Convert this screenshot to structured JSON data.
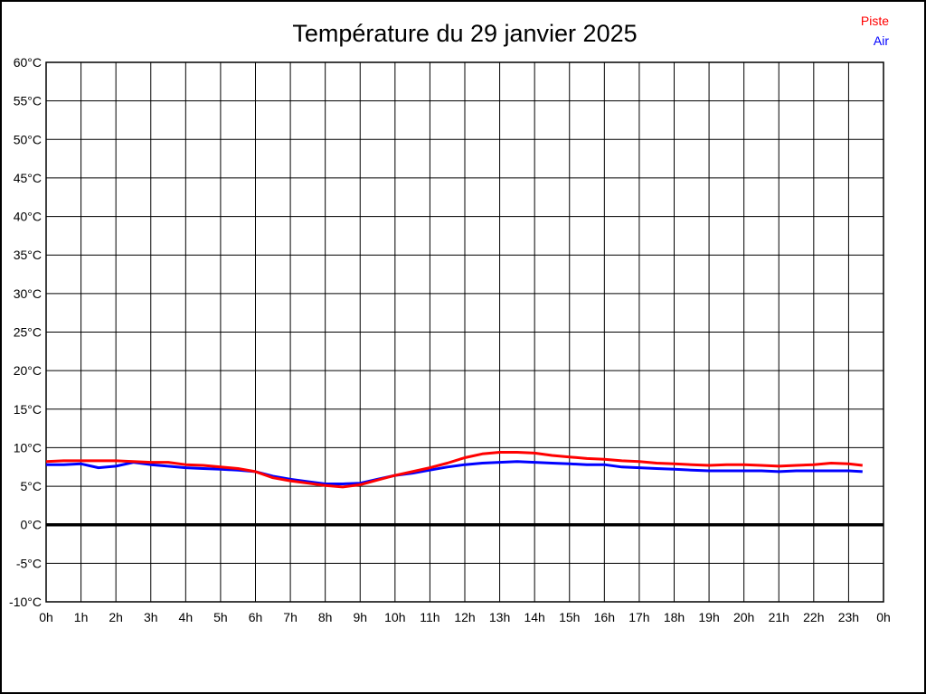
{
  "page": {
    "background": "#ffffff",
    "border_color": "#000000"
  },
  "header": {
    "title": "Température du 29 janvier 2025"
  },
  "legend": {
    "position": "top-right",
    "items": [
      {
        "label": "Piste",
        "color": "#ff0000"
      },
      {
        "label": "Air",
        "color": "#0000ff"
      }
    ]
  },
  "chart_data": {
    "type": "line",
    "title": "Température du 29 janvier 2025",
    "xlabel": "",
    "ylabel": "",
    "x_unit": "hours",
    "xlim": [
      0,
      24
    ],
    "ylim": [
      -10,
      60
    ],
    "x_tick_step_hours": 1,
    "y_tick_step_degrees": 5,
    "x_tick_labels": [
      "0h",
      "1h",
      "2h",
      "3h",
      "4h",
      "5h",
      "6h",
      "7h",
      "8h",
      "9h",
      "10h",
      "11h",
      "12h",
      "13h",
      "14h",
      "15h",
      "16h",
      "17h",
      "18h",
      "19h",
      "20h",
      "21h",
      "22h",
      "23h",
      "0h"
    ],
    "y_tick_labels": [
      "60°C",
      "55°C",
      "50°C",
      "45°C",
      "40°C",
      "35°C",
      "30°C",
      "25°C",
      "20°C",
      "15°C",
      "10°C",
      "5°C",
      "0°C",
      "-5°C",
      "-10°C"
    ],
    "grid": true,
    "grid_color": "#000000",
    "frame_color": "#000000",
    "zero_line": {
      "value": 0,
      "color": "#000000",
      "width": 3.5
    },
    "line_width": 3,
    "x": [
      0,
      0.5,
      1,
      1.5,
      2,
      2.5,
      3,
      3.5,
      4,
      4.5,
      5,
      5.5,
      6,
      6.5,
      7,
      7.5,
      8,
      8.5,
      9,
      9.5,
      10,
      10.5,
      11,
      11.5,
      12,
      12.5,
      13,
      13.5,
      14,
      14.5,
      15,
      15.5,
      16,
      16.5,
      17,
      17.5,
      18,
      18.5,
      19,
      19.5,
      20,
      20.5,
      21,
      21.5,
      22,
      22.5,
      23,
      23.4
    ],
    "series": [
      {
        "name": "Piste",
        "color": "#ff0000",
        "values": [
          8.2,
          8.3,
          8.3,
          8.3,
          8.3,
          8.2,
          8.1,
          8.1,
          7.8,
          7.7,
          7.5,
          7.3,
          6.9,
          6.1,
          5.7,
          5.4,
          5.1,
          4.9,
          5.2,
          5.8,
          6.4,
          6.9,
          7.4,
          8.0,
          8.7,
          9.2,
          9.4,
          9.4,
          9.3,
          9.0,
          8.8,
          8.6,
          8.5,
          8.3,
          8.2,
          8.0,
          7.9,
          7.8,
          7.7,
          7.8,
          7.8,
          7.7,
          7.6,
          7.7,
          7.8,
          8.0,
          7.9,
          7.7
        ]
      },
      {
        "name": "Air",
        "color": "#0000ff",
        "values": [
          7.8,
          7.8,
          7.9,
          7.4,
          7.6,
          8.1,
          7.8,
          7.6,
          7.4,
          7.3,
          7.2,
          7.1,
          6.9,
          6.3,
          5.9,
          5.6,
          5.3,
          5.3,
          5.4,
          5.9,
          6.4,
          6.7,
          7.1,
          7.5,
          7.8,
          8.0,
          8.1,
          8.2,
          8.1,
          8.0,
          7.9,
          7.8,
          7.8,
          7.5,
          7.4,
          7.3,
          7.2,
          7.1,
          7.0,
          7.0,
          7.0,
          7.0,
          6.9,
          7.0,
          7.0,
          7.0,
          7.0,
          6.9
        ]
      }
    ],
    "legend_position": "top-right"
  }
}
